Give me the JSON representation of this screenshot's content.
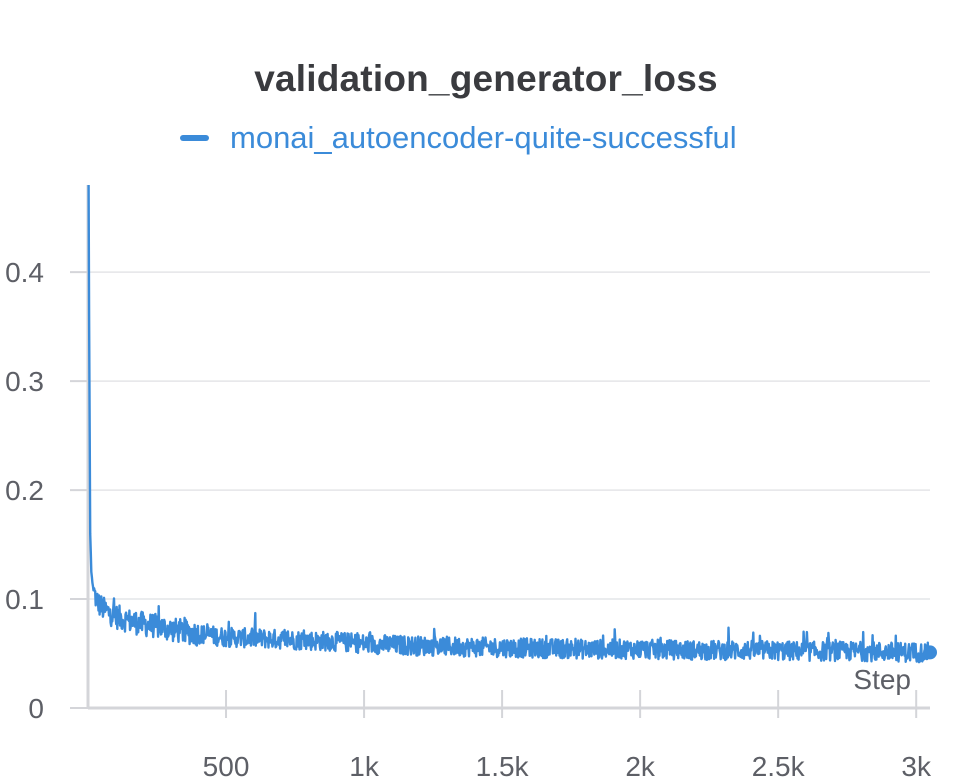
{
  "chart_data": {
    "type": "line",
    "title": "validation_generator_loss",
    "xlabel": "Step",
    "ylabel": "",
    "xlim": [
      0,
      3050
    ],
    "ylim": [
      0,
      0.48
    ],
    "grid": true,
    "legend_position": "top",
    "x_ticks": [
      {
        "value": 500,
        "label": "500"
      },
      {
        "value": 1000,
        "label": "1k"
      },
      {
        "value": 1500,
        "label": "1.5k"
      },
      {
        "value": 2000,
        "label": "2k"
      },
      {
        "value": 2500,
        "label": "2.5k"
      },
      {
        "value": 3000,
        "label": "3k"
      }
    ],
    "y_ticks": [
      {
        "value": 0,
        "label": "0"
      },
      {
        "value": 0.1,
        "label": "0.1"
      },
      {
        "value": 0.2,
        "label": "0.2"
      },
      {
        "value": 0.3,
        "label": "0.3"
      },
      {
        "value": 0.4,
        "label": "0.4"
      }
    ],
    "series": [
      {
        "name": "monai_autoencoder-quite-successful",
        "color": "#3b8bd9",
        "noise_amplitude": 0.009,
        "x": [
          2,
          5,
          8,
          12,
          16,
          20,
          30,
          40,
          60,
          80,
          100,
          150,
          200,
          250,
          300,
          400,
          500,
          600,
          700,
          800,
          900,
          1000,
          1200,
          1400,
          1600,
          1800,
          2000,
          2200,
          2400,
          2600,
          2800,
          3000,
          3050
        ],
        "y": [
          0.48,
          0.3,
          0.16,
          0.125,
          0.115,
          0.108,
          0.1,
          0.095,
          0.09,
          0.087,
          0.084,
          0.08,
          0.077,
          0.075,
          0.072,
          0.068,
          0.065,
          0.064,
          0.063,
          0.062,
          0.061,
          0.059,
          0.057,
          0.056,
          0.055,
          0.054,
          0.054,
          0.053,
          0.053,
          0.052,
          0.052,
          0.051,
          0.051
        ]
      }
    ]
  }
}
